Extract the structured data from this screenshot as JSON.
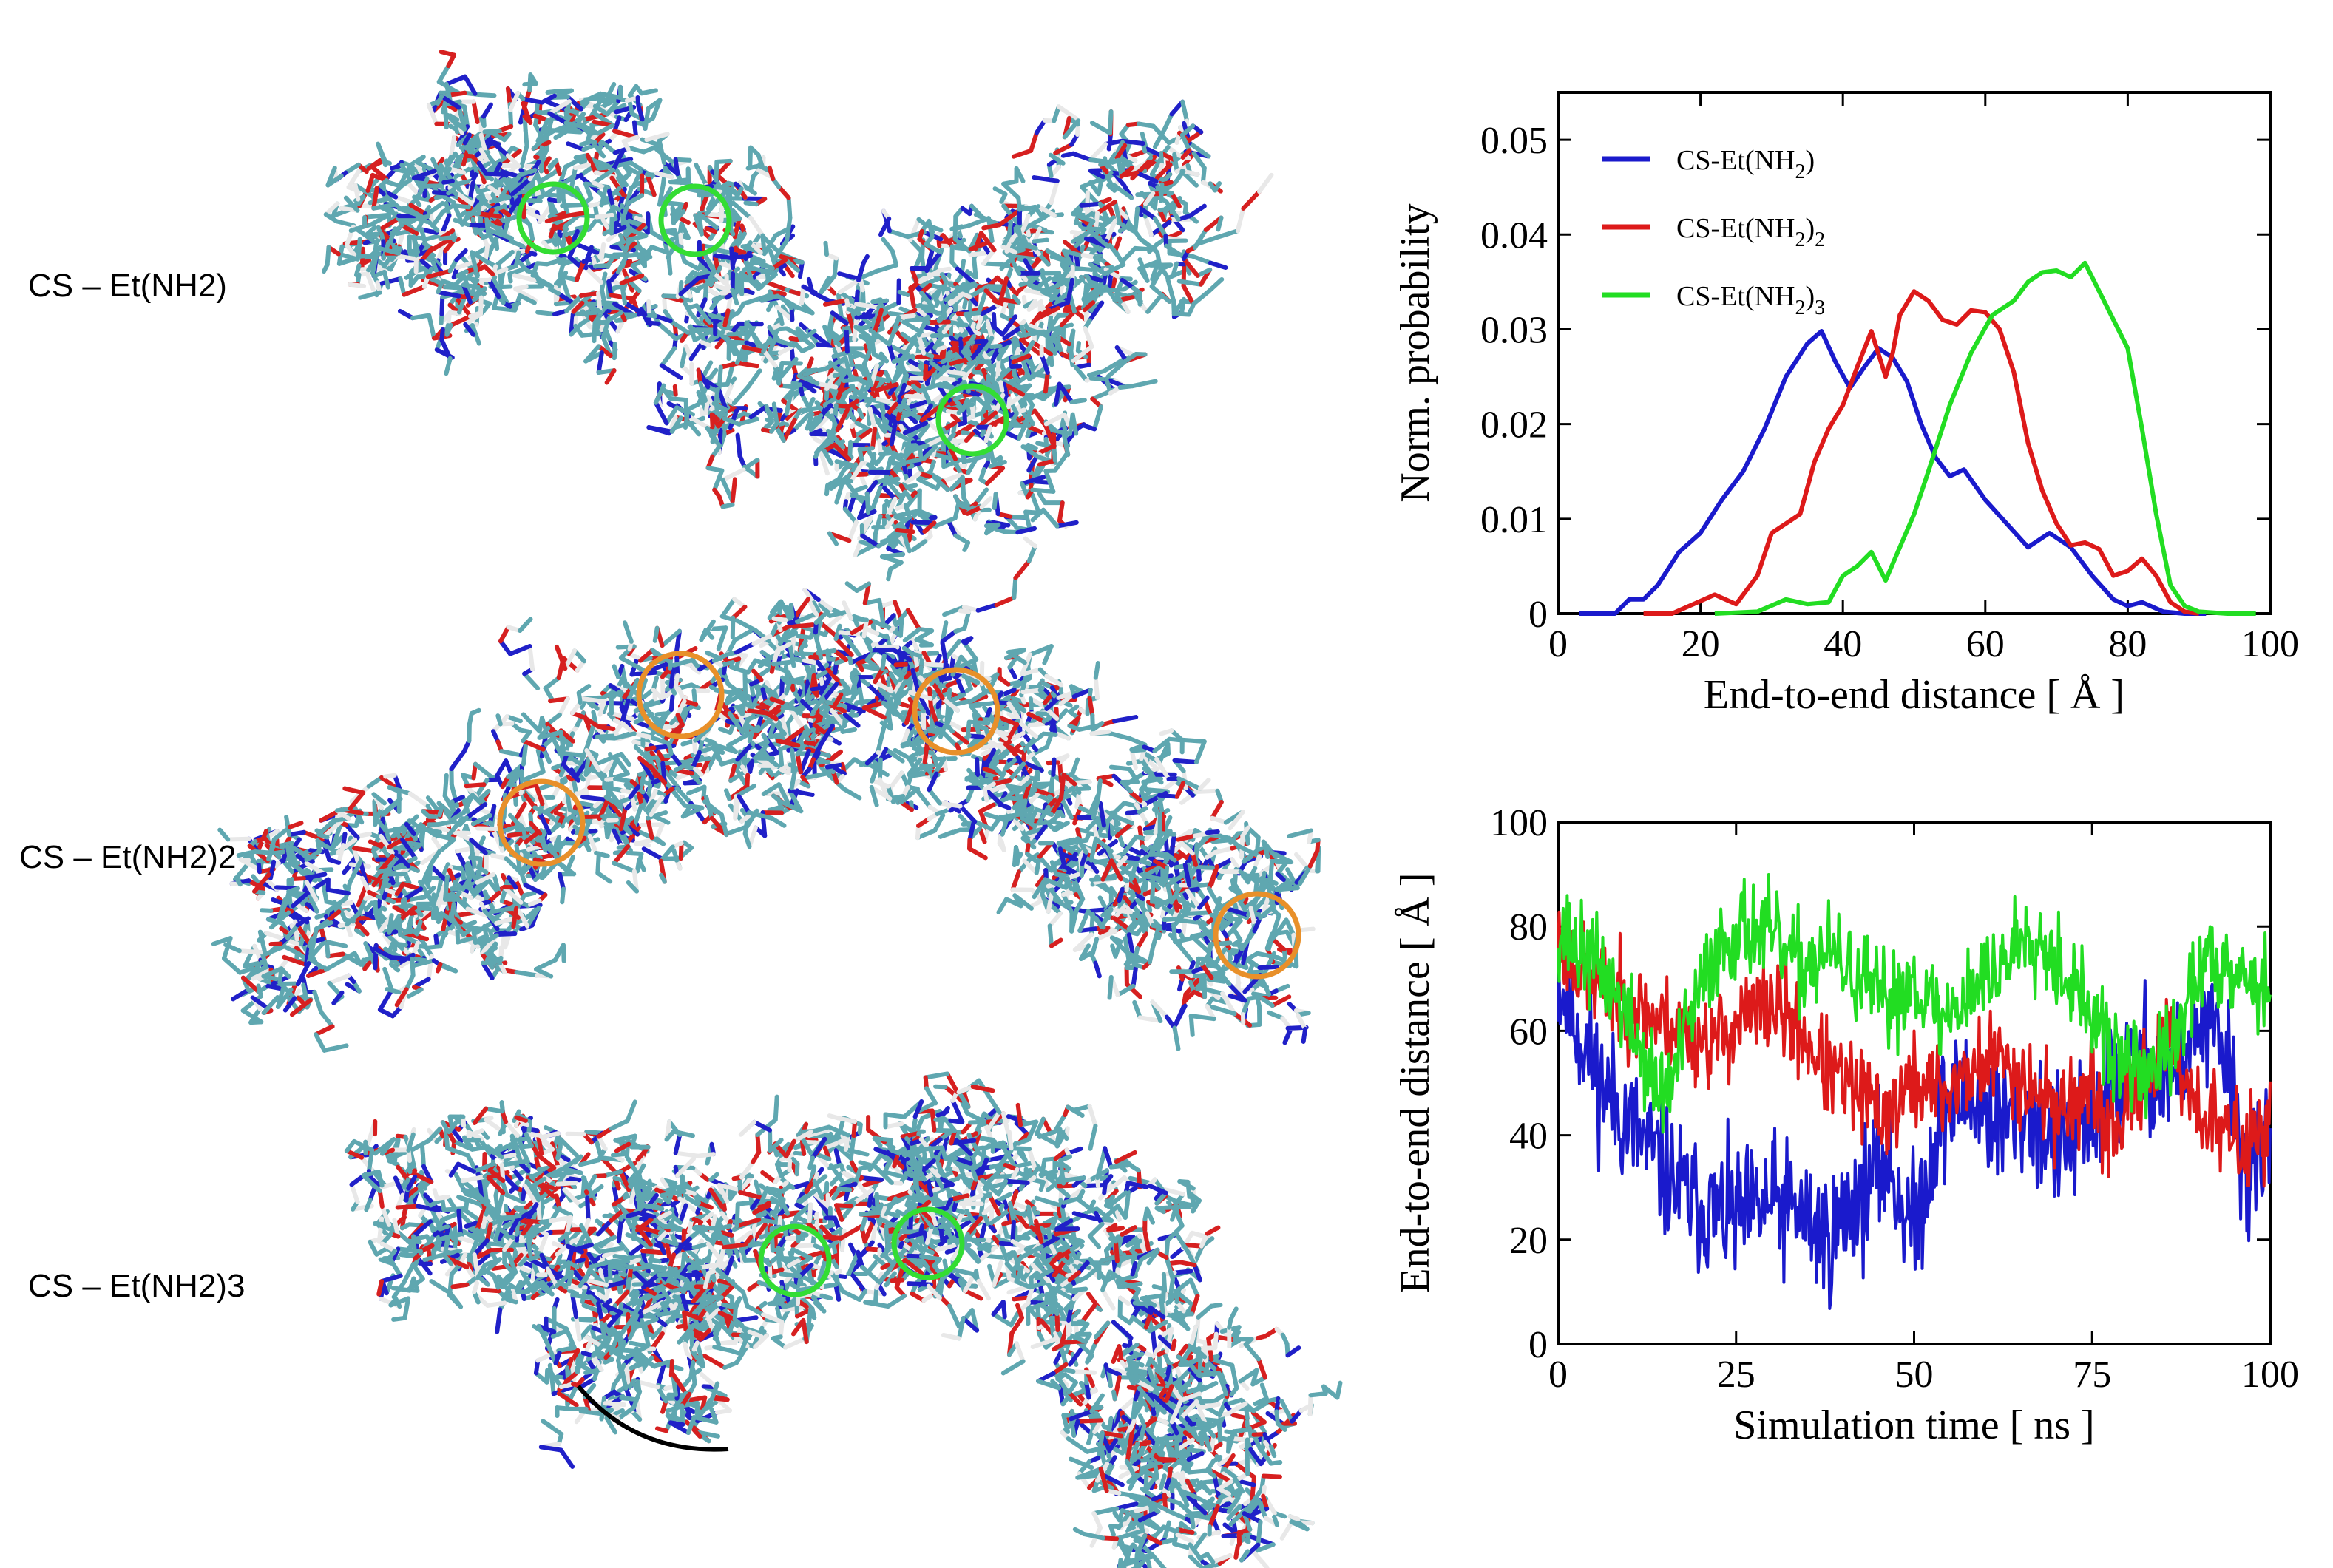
{
  "molecules": [
    {
      "label": "CS – Et(NH2)",
      "highlight_color": "#33dd33"
    },
    {
      "label": "CS – Et(NH2)2",
      "highlight_color": "#e8902a"
    },
    {
      "label": "CS – Et(NH2)3",
      "highlight_color": "#33dd33"
    }
  ],
  "atom_colors": {
    "carbon": "#5fa7b0",
    "oxygen": "#d62020",
    "nitrogen": "#2020c8",
    "hydrogen": "#e8e8e8"
  },
  "chart_data": [
    {
      "type": "line",
      "xlabel": "End-to-end distance [ Å ]",
      "ylabel": "Norm. probability",
      "xlim": [
        0,
        100
      ],
      "ylim": [
        0,
        0.055
      ],
      "xticks": [
        "0",
        "20",
        "40",
        "60",
        "80",
        "100"
      ],
      "yticks": [
        "0",
        "0.01",
        "0.02",
        "0.03",
        "0.04",
        "0.05"
      ],
      "xtick_values": [
        0,
        20,
        40,
        60,
        80,
        100
      ],
      "ytick_values": [
        0,
        0.01,
        0.02,
        0.03,
        0.04,
        0.05
      ],
      "legend_position": "top-left",
      "series": [
        {
          "name": "CS-Et(NH₂)",
          "legend_main": "CS-Et(NH",
          "legend_sub": "2",
          "legend_tail": ")",
          "legend_tail_sub": "",
          "color": "#1a1acc",
          "x": [
            3,
            8,
            10,
            12,
            14,
            17,
            20,
            23,
            26,
            29,
            32,
            35,
            37,
            39,
            41,
            43,
            45,
            47,
            49,
            51,
            53,
            55,
            57,
            60,
            63,
            66,
            69,
            72,
            75,
            78,
            80,
            82,
            85,
            88,
            91
          ],
          "y": [
            0,
            0,
            0.0015,
            0.0015,
            0.003,
            0.0065,
            0.0085,
            0.012,
            0.015,
            0.0195,
            0.025,
            0.0285,
            0.0298,
            0.0265,
            0.0238,
            0.026,
            0.028,
            0.027,
            0.0245,
            0.02,
            0.0165,
            0.0145,
            0.0152,
            0.012,
            0.0095,
            0.007,
            0.0085,
            0.007,
            0.004,
            0.0015,
            0.0008,
            0.0012,
            0.0002,
            0,
            0
          ]
        },
        {
          "name": "CS-Et(NH₂)₂",
          "legend_main": "CS-Et(NH",
          "legend_sub": "2",
          "legend_tail": ")",
          "legend_tail_sub": "2",
          "color": "#dd1a1a",
          "x": [
            12,
            16,
            19,
            22,
            25,
            28,
            30,
            32,
            34,
            36,
            38,
            40,
            42,
            44,
            46,
            47,
            48,
            50,
            52,
            54,
            56,
            58,
            60,
            62,
            64,
            66,
            68,
            70,
            72,
            74,
            76,
            78,
            80,
            82,
            84,
            86,
            88,
            90
          ],
          "y": [
            0,
            0,
            0.001,
            0.002,
            0.001,
            0.004,
            0.0085,
            0.0095,
            0.0105,
            0.016,
            0.0195,
            0.022,
            0.026,
            0.0298,
            0.025,
            0.0275,
            0.0315,
            0.034,
            0.033,
            0.031,
            0.0305,
            0.032,
            0.0318,
            0.03,
            0.0255,
            0.018,
            0.013,
            0.0095,
            0.0072,
            0.0075,
            0.0068,
            0.004,
            0.0045,
            0.0058,
            0.004,
            0.0012,
            0.0002,
            0
          ]
        },
        {
          "name": "CS-Et(NH₂)₃",
          "legend_main": "CS-Et(NH",
          "legend_sub": "2",
          "legend_tail": ")",
          "legend_tail_sub": "3",
          "color": "#22dd22",
          "x": [
            22,
            28,
            32,
            35,
            38,
            40,
            42,
            44,
            46,
            48,
            50,
            52,
            55,
            58,
            61,
            64,
            66,
            68,
            70,
            72,
            74,
            76,
            78,
            80,
            82,
            84,
            86,
            88,
            90,
            94,
            98
          ],
          "y": [
            0,
            0.0002,
            0.0015,
            0.001,
            0.0012,
            0.004,
            0.005,
            0.0065,
            0.0035,
            0.007,
            0.0105,
            0.015,
            0.022,
            0.0275,
            0.0315,
            0.033,
            0.035,
            0.036,
            0.0362,
            0.0355,
            0.037,
            0.034,
            0.031,
            0.028,
            0.0195,
            0.0105,
            0.003,
            0.0008,
            0.0002,
            0,
            0
          ]
        }
      ]
    },
    {
      "type": "line",
      "xlabel": "Simulation time [ ns ]",
      "ylabel": "End-to-end distance [ Å ]",
      "xlim": [
        0,
        100
      ],
      "ylim": [
        0,
        100
      ],
      "xticks": [
        "0",
        "25",
        "50",
        "75",
        "100"
      ],
      "yticks": [
        "0",
        "20",
        "40",
        "60",
        "80",
        "100"
      ],
      "xtick_values": [
        0,
        25,
        50,
        75,
        100
      ],
      "ytick_values": [
        0,
        20,
        40,
        60,
        80,
        100
      ],
      "series": [
        {
          "name": "CS-Et(NH₂)",
          "color": "#1a1acc",
          "noise": 10,
          "seed": 11,
          "t": [
            0,
            3,
            6,
            10,
            14,
            18,
            22,
            26,
            30,
            34,
            38,
            42,
            46,
            50,
            54,
            58,
            62,
            66,
            70,
            74,
            78,
            82,
            86,
            90,
            94,
            97,
            100
          ],
          "y": [
            70,
            60,
            50,
            42,
            35,
            28,
            25,
            24,
            27,
            25,
            20,
            28,
            35,
            22,
            45,
            48,
            42,
            45,
            38,
            40,
            50,
            55,
            50,
            62,
            55,
            30,
            40
          ]
        },
        {
          "name": "CS-Et(NH₂)₂",
          "color": "#dd1a1a",
          "noise": 7,
          "seed": 23,
          "t": [
            0,
            3,
            6,
            10,
            14,
            18,
            22,
            26,
            30,
            34,
            38,
            42,
            46,
            50,
            54,
            58,
            62,
            66,
            70,
            74,
            78,
            82,
            86,
            90,
            94,
            97,
            100
          ],
          "y": [
            78,
            72,
            68,
            65,
            62,
            60,
            58,
            62,
            65,
            60,
            52,
            48,
            44,
            50,
            48,
            52,
            55,
            50,
            45,
            48,
            40,
            52,
            58,
            45,
            40,
            38,
            44
          ]
        },
        {
          "name": "CS-Et(NH₂)₃",
          "color": "#22dd22",
          "noise": 7,
          "seed": 37,
          "t": [
            0,
            3,
            6,
            10,
            14,
            16,
            18,
            22,
            26,
            30,
            34,
            38,
            42,
            46,
            50,
            54,
            58,
            62,
            66,
            70,
            74,
            78,
            82,
            86,
            90,
            94,
            97,
            100
          ],
          "y": [
            80,
            75,
            72,
            62,
            48,
            50,
            60,
            75,
            80,
            78,
            72,
            75,
            70,
            65,
            70,
            62,
            68,
            72,
            80,
            74,
            65,
            55,
            52,
            55,
            72,
            74,
            70,
            68
          ]
        }
      ]
    }
  ]
}
